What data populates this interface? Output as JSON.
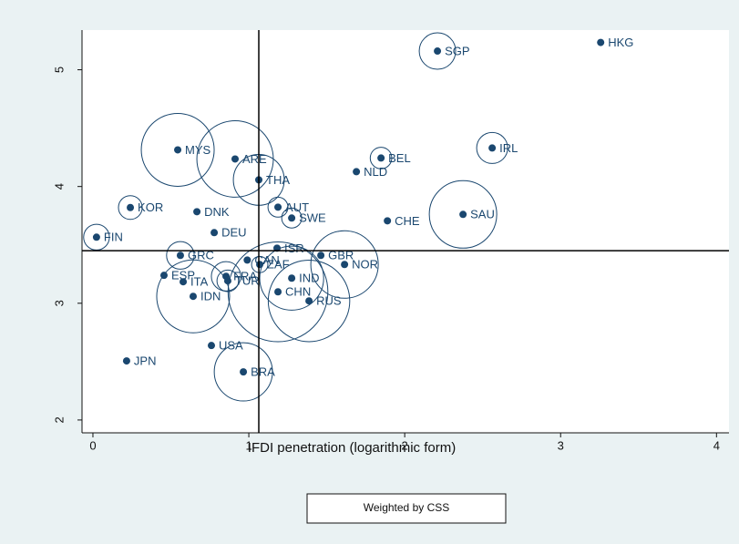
{
  "chart_data": {
    "type": "scatter",
    "xlabel": "IFDI penetration (logarithmic form)",
    "legend": "Weighted by CSS",
    "xlim": [
      -0.07,
      4.08
    ],
    "ylim": [
      1.89,
      5.34
    ],
    "xticks": [
      0,
      1,
      2,
      3,
      4
    ],
    "yticks": [
      2,
      3,
      4,
      5
    ],
    "xline": 1.064,
    "yline": 3.45,
    "color": "#1a476f",
    "series": [
      {
        "names": [
          "HKG",
          "SGP",
          "MYS",
          "ARE",
          "THA",
          "BEL",
          "IRL",
          "NLD",
          "KOR",
          "DNK",
          "AUT",
          "SWE",
          "CHE",
          "SAU",
          "FIN",
          "DEU",
          "GRC",
          "ISR",
          "GBR",
          "NOR",
          "ESP",
          "ITA",
          "FRA",
          "TUR",
          "CAN",
          "ZAF",
          "IND",
          "CHN",
          "RUS",
          "IDN",
          "USA",
          "JPN",
          "BRA"
        ],
        "x": [
          3.257,
          2.21,
          0.544,
          0.912,
          1.064,
          1.848,
          2.561,
          1.69,
          0.24,
          0.667,
          1.187,
          1.275,
          1.889,
          2.374,
          0.023,
          0.778,
          0.561,
          1.181,
          1.462,
          1.614,
          0.456,
          0.579,
          0.854,
          0.865,
          0.99,
          1.07,
          1.275,
          1.187,
          1.386,
          0.643,
          0.76,
          0.216,
          0.965
        ],
        "values": [
          5.234,
          5.16,
          4.314,
          4.236,
          4.057,
          4.244,
          4.33,
          4.127,
          3.82,
          3.784,
          3.823,
          3.73,
          3.706,
          3.761,
          3.566,
          3.605,
          3.41,
          3.472,
          3.41,
          3.332,
          3.239,
          3.184,
          3.231,
          3.192,
          3.37,
          3.332,
          3.215,
          3.098,
          3.02,
          3.059,
          2.638,
          2.506,
          2.412
        ],
        "sizes": [
          0.1,
          4,
          16,
          17.6,
          7.8,
          1.4,
          2.9,
          0.1,
          1.7,
          0.1,
          1.2,
          1.2,
          0.1,
          13.7,
          2,
          0.1,
          2.3,
          0.1,
          0.1,
          13.7,
          0.1,
          0.1,
          2.6,
          1.4,
          0.1,
          0.8,
          12.3,
          30,
          20,
          16,
          0.1,
          0.1,
          10.2
        ]
      }
    ]
  }
}
